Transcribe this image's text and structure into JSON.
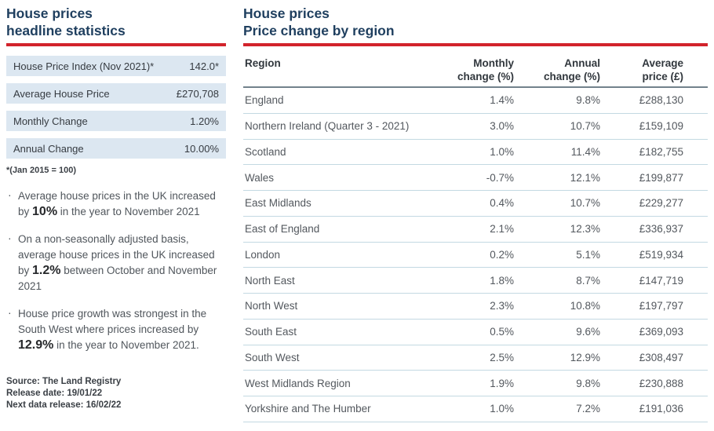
{
  "colors": {
    "title_navy": "#1f3f5f",
    "rule_red": "#d2232b",
    "stat_row_bg": "#dce7f1",
    "row_separator": "#c3d9e2",
    "header_underline": "#72828c"
  },
  "left_panel": {
    "title_line1": "House prices",
    "title_line2": "headline statistics",
    "stats": [
      {
        "label": "House Price Index (Nov 2021)*",
        "value": "142.0*"
      },
      {
        "label": "Average House Price",
        "value": "£270,708"
      },
      {
        "label": "Monthly Change",
        "value": "1.20%"
      },
      {
        "label": "Annual Change",
        "value": "10.00%"
      }
    ],
    "footnote": "*(Jan 2015 = 100)",
    "bullet_char": "·",
    "bullets": [
      {
        "pre": "Average house prices in the UK increased by ",
        "bold": "10%",
        "post": " in the year to November 2021"
      },
      {
        "pre": "On a non-seasonally adjusted basis, average house prices in the UK increased by ",
        "bold": "1.2%",
        "post": " between October and November 2021"
      },
      {
        "pre": "House price growth was strongest in the South West where prices increased by ",
        "bold": "12.9%",
        "post": " in the year to November 2021."
      }
    ],
    "source_lines": [
      "Source: The Land Registry",
      "Release date: 19/01/22",
      "Next data release: 16/02/22"
    ]
  },
  "right_panel": {
    "title_line1": "House prices",
    "title_line2": "Price change by region",
    "table": {
      "headers": {
        "region": "Region",
        "monthly_line1": "Monthly",
        "monthly_line2": "change (%)",
        "annual_line1": "Annual",
        "annual_line2": "change (%)",
        "average_line1": "Average",
        "average_line2": "price (£)"
      },
      "rows": [
        {
          "region": "England",
          "monthly": "1.4%",
          "annual": "9.8%",
          "average": "£288,130"
        },
        {
          "region": "Northern Ireland (Quarter 3 - 2021)",
          "monthly": "3.0%",
          "annual": "10.7%",
          "average": "£159,109"
        },
        {
          "region": "Scotland",
          "monthly": "1.0%",
          "annual": "11.4%",
          "average": "£182,755"
        },
        {
          "region": "Wales",
          "monthly": "-0.7%",
          "annual": "12.1%",
          "average": "£199,877"
        },
        {
          "region": "East Midlands",
          "monthly": "0.4%",
          "annual": "10.7%",
          "average": "£229,277"
        },
        {
          "region": "East of England",
          "monthly": "2.1%",
          "annual": "12.3%",
          "average": "£336,937"
        },
        {
          "region": "London",
          "monthly": "0.2%",
          "annual": "5.1%",
          "average": "£519,934"
        },
        {
          "region": "North East",
          "monthly": "1.8%",
          "annual": "8.7%",
          "average": "£147,719"
        },
        {
          "region": "North West",
          "monthly": "2.3%",
          "annual": "10.8%",
          "average": "£197,797"
        },
        {
          "region": "South East",
          "monthly": "0.5%",
          "annual": "9.6%",
          "average": "£369,093"
        },
        {
          "region": "South West",
          "monthly": "2.5%",
          "annual": "12.9%",
          "average": "£308,497"
        },
        {
          "region": "West Midlands Region",
          "monthly": "1.9%",
          "annual": "9.8%",
          "average": "£230,888"
        },
        {
          "region": "Yorkshire and The Humber",
          "monthly": "1.0%",
          "annual": "7.2%",
          "average": "£191,036"
        }
      ]
    }
  }
}
